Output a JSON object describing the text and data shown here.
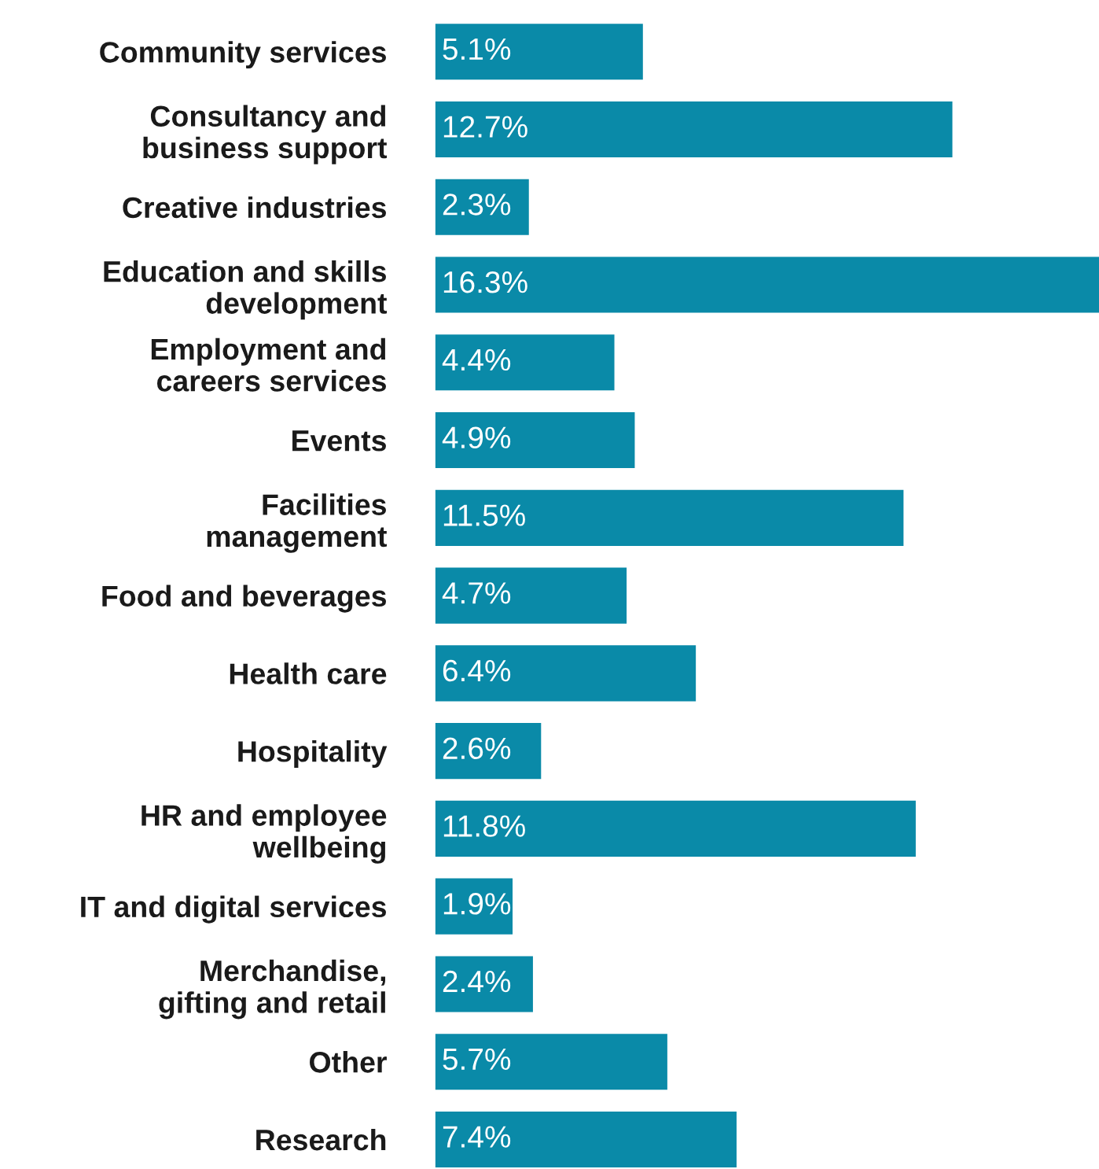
{
  "chart_data": {
    "type": "bar",
    "orientation": "horizontal",
    "categories": [
      "Community services",
      "Consultancy and\nbusiness support",
      "Creative industries",
      "Education and skills\ndevelopment",
      "Employment and\ncareers services",
      "Events",
      "Facilities\nmanagement",
      "Food and beverages",
      "Health care",
      "Hospitality",
      "HR and employee\nwellbeing",
      "IT and digital services",
      "Merchandise,\ngifting and retail",
      "Other",
      "Research"
    ],
    "values": [
      5.1,
      12.7,
      2.3,
      16.3,
      4.4,
      4.9,
      11.5,
      4.7,
      6.4,
      2.6,
      11.8,
      1.9,
      2.4,
      5.7,
      7.4
    ],
    "value_labels": [
      "5.1%",
      "12.7%",
      "2.3%",
      "16.3%",
      "4.4%",
      "4.9%",
      "11.5%",
      "4.7%",
      "6.4%",
      "2.6%",
      "11.8%",
      "1.9%",
      "2.4%",
      "5.7%",
      "7.4%"
    ],
    "color": "#0a8aa8",
    "grid": false,
    "legend": false
  }
}
